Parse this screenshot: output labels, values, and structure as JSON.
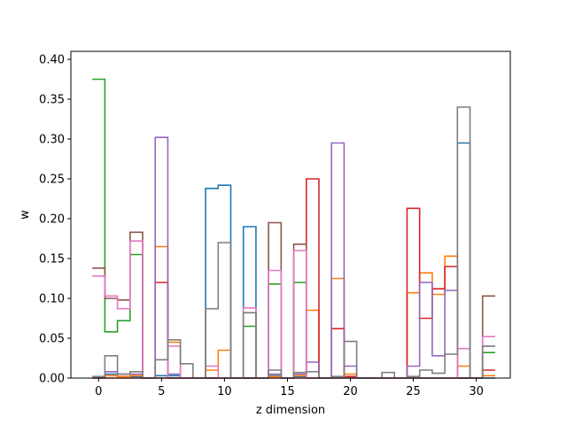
{
  "chart_data": {
    "type": "step",
    "xlabel": "z dimension",
    "ylabel": "w",
    "xlim": [
      -2.2,
      32.7
    ],
    "ylim": [
      0,
      0.41
    ],
    "xticks": [
      0,
      5,
      10,
      15,
      20,
      25,
      30
    ],
    "xtick_labels": [
      "0",
      "5",
      "10",
      "15",
      "20",
      "25",
      "30"
    ],
    "yticks": [
      0,
      0.05,
      0.1,
      0.15,
      0.2,
      0.25,
      0.3,
      0.35,
      0.4
    ],
    "ytick_labels": [
      "0.00",
      "0.05",
      "0.10",
      "0.15",
      "0.20",
      "0.25",
      "0.30",
      "0.35",
      "0.40"
    ],
    "x": [
      0,
      1,
      2,
      3,
      4,
      5,
      6,
      7,
      8,
      9,
      10,
      11,
      12,
      13,
      14,
      15,
      16,
      17,
      18,
      19,
      20,
      21,
      22,
      23,
      24,
      25,
      26,
      27,
      28,
      29,
      30,
      31
    ],
    "series": [
      {
        "color": "#1f77b4",
        "values": [
          0,
          0.005,
          0.002,
          0.002,
          0,
          0.003,
          0.003,
          0,
          0,
          0.238,
          0.242,
          0,
          0.19,
          0,
          0.003,
          0,
          0.002,
          0,
          0,
          0,
          0,
          0,
          0,
          0,
          0,
          0,
          0,
          0,
          0,
          0.295,
          0,
          0
        ]
      },
      {
        "color": "#ff7f0e",
        "values": [
          0,
          0.003,
          0.002,
          0.003,
          0,
          0.165,
          0.045,
          0,
          0,
          0.01,
          0.035,
          0,
          0,
          0,
          0.002,
          0,
          0.003,
          0.085,
          0,
          0.125,
          0.005,
          0,
          0,
          0,
          0,
          0.107,
          0.132,
          0.105,
          0.153,
          0.015,
          0,
          0.003
        ]
      },
      {
        "color": "#2ca02c",
        "values": [
          0.375,
          0.058,
          0.072,
          0.155,
          0,
          0,
          0,
          0,
          0,
          0,
          0,
          0,
          0.065,
          0,
          0.118,
          0,
          0.12,
          0,
          0,
          0,
          0,
          0,
          0,
          0,
          0,
          0,
          0,
          0,
          0,
          0,
          0,
          0.032
        ]
      },
      {
        "color": "#d62728",
        "values": [
          0,
          0,
          0,
          0,
          0,
          0.12,
          0,
          0,
          0,
          0,
          0,
          0,
          0,
          0,
          0,
          0,
          0,
          0.25,
          0,
          0.062,
          0.002,
          0,
          0,
          0,
          0,
          0.213,
          0.075,
          0.112,
          0.14,
          0,
          0,
          0.01
        ]
      },
      {
        "color": "#9467bd",
        "values": [
          0,
          0.008,
          0.005,
          0.005,
          0,
          0.302,
          0.005,
          0,
          0,
          0,
          0,
          0,
          0,
          0,
          0.005,
          0,
          0.005,
          0.02,
          0,
          0.295,
          0.015,
          0,
          0,
          0,
          0,
          0.015,
          0.12,
          0.028,
          0.11,
          0,
          0,
          0.04
        ]
      },
      {
        "color": "#8c564b",
        "values": [
          0.138,
          0.1,
          0.098,
          0.183,
          0,
          0,
          0,
          0,
          0,
          0,
          0,
          0,
          0,
          0,
          0.195,
          0,
          0.168,
          0,
          0,
          0,
          0,
          0,
          0,
          0,
          0,
          0,
          0,
          0,
          0,
          0,
          0,
          0.103
        ]
      },
      {
        "color": "#e377c2",
        "values": [
          0.128,
          0.103,
          0.087,
          0.172,
          0,
          0,
          0.04,
          0,
          0,
          0.015,
          0,
          0,
          0.088,
          0,
          0.135,
          0,
          0.16,
          0,
          0,
          0,
          0,
          0,
          0,
          0,
          0,
          0,
          0,
          0,
          0,
          0.037,
          0,
          0.052
        ]
      },
      {
        "color": "#7f7f7f",
        "values": [
          0.002,
          0.028,
          0.005,
          0.008,
          0,
          0.023,
          0.048,
          0.018,
          0,
          0.087,
          0.17,
          0,
          0.082,
          0,
          0.01,
          0,
          0.007,
          0.008,
          0,
          0.002,
          0.046,
          0,
          0,
          0.007,
          0,
          0.002,
          0.01,
          0.006,
          0.03,
          0.34,
          0,
          0.04
        ]
      }
    ]
  }
}
